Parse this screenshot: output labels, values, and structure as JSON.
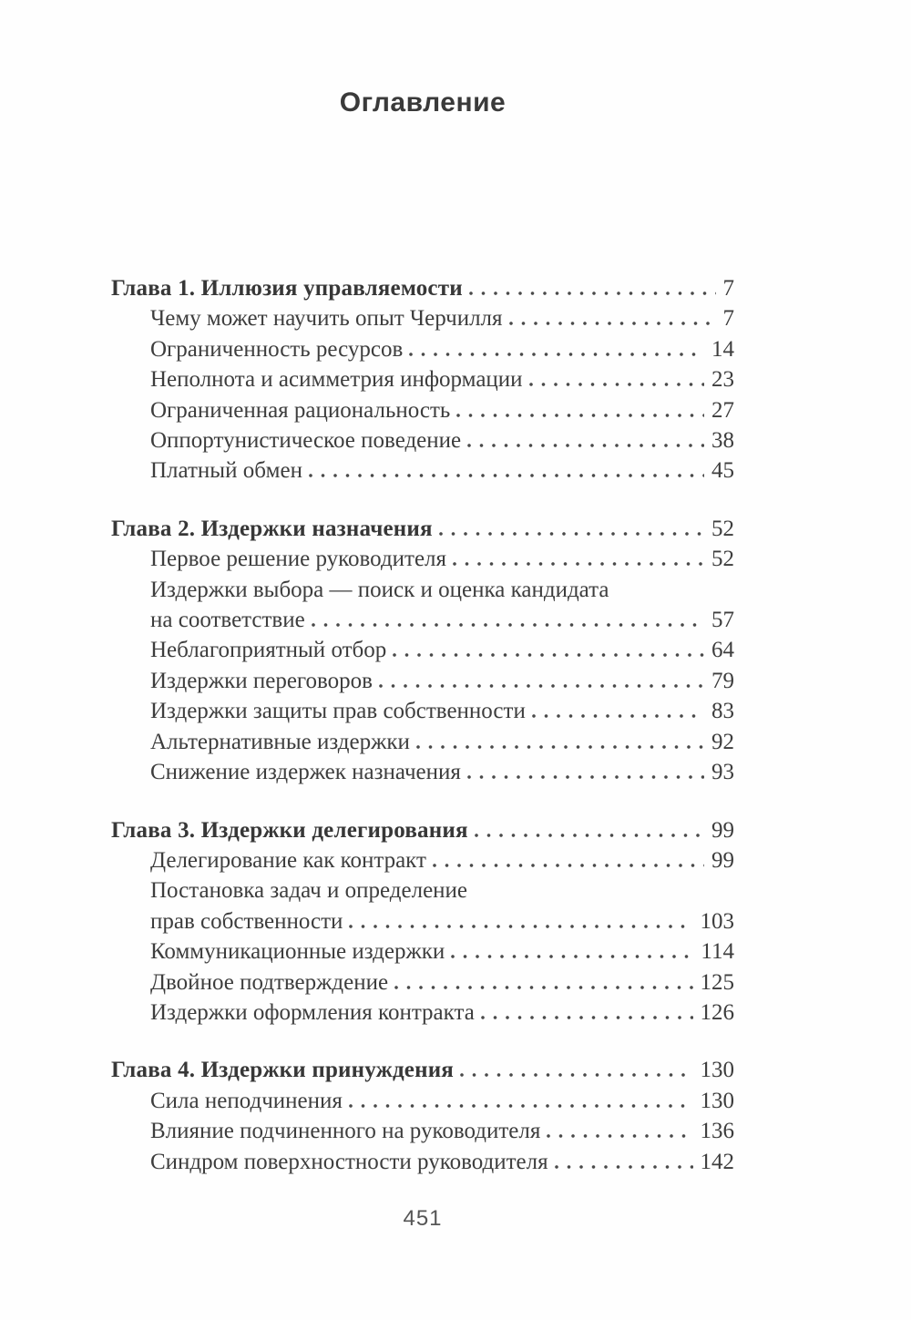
{
  "page": {
    "title": "Оглавление",
    "page_number": "451",
    "text_color": "#3d3d3d",
    "background_color": "#fefefe"
  },
  "toc": {
    "sections": [
      {
        "heading": {
          "label": "Глава 1. Иллюзия управляемости",
          "page": "7"
        },
        "entries": [
          {
            "lines": [
              "Чему может научить опыт Черчилля"
            ],
            "page": "7"
          },
          {
            "lines": [
              "Ограниченность ресурсов"
            ],
            "page": "14"
          },
          {
            "lines": [
              "Неполнота и асимметрия информации"
            ],
            "page": "23"
          },
          {
            "lines": [
              "Ограниченная рациональность"
            ],
            "page": "27"
          },
          {
            "lines": [
              "Оппортунистическое поведение"
            ],
            "page": "38"
          },
          {
            "lines": [
              "Платный обмен"
            ],
            "page": "45"
          }
        ]
      },
      {
        "heading": {
          "label": "Глава 2. Издержки назначения",
          "page": "52"
        },
        "entries": [
          {
            "lines": [
              "Первое решение руководителя"
            ],
            "page": "52"
          },
          {
            "lines": [
              "Издержки выбора — поиск и оценка кандидата",
              "на соответствие"
            ],
            "page": "57"
          },
          {
            "lines": [
              "Неблагоприятный отбор"
            ],
            "page": "64"
          },
          {
            "lines": [
              "Издержки переговоров"
            ],
            "page": "79"
          },
          {
            "lines": [
              "Издержки защиты прав собственности"
            ],
            "page": "83"
          },
          {
            "lines": [
              "Альтернативные издержки"
            ],
            "page": "92"
          },
          {
            "lines": [
              "Снижение издержек назначения"
            ],
            "page": "93"
          }
        ]
      },
      {
        "heading": {
          "label": "Глава 3. Издержки делегирования",
          "page": "99"
        },
        "entries": [
          {
            "lines": [
              "Делегирование как контракт"
            ],
            "page": "99"
          },
          {
            "lines": [
              "Постановка задач и определение",
              "прав собственности"
            ],
            "page": "103"
          },
          {
            "lines": [
              "Коммуникационные издержки"
            ],
            "page": "114"
          },
          {
            "lines": [
              "Двойное подтверждение"
            ],
            "page": "125"
          },
          {
            "lines": [
              "Издержки оформления контракта"
            ],
            "page": "126"
          }
        ]
      },
      {
        "heading": {
          "label": "Глава 4. Издержки принуждения",
          "page": "130"
        },
        "entries": [
          {
            "lines": [
              "Сила неподчинения"
            ],
            "page": "130"
          },
          {
            "lines": [
              "Влияние подчиненного на руководителя"
            ],
            "page": "136"
          },
          {
            "lines": [
              "Синдром поверхностности руководителя"
            ],
            "page": "142"
          }
        ]
      }
    ]
  }
}
